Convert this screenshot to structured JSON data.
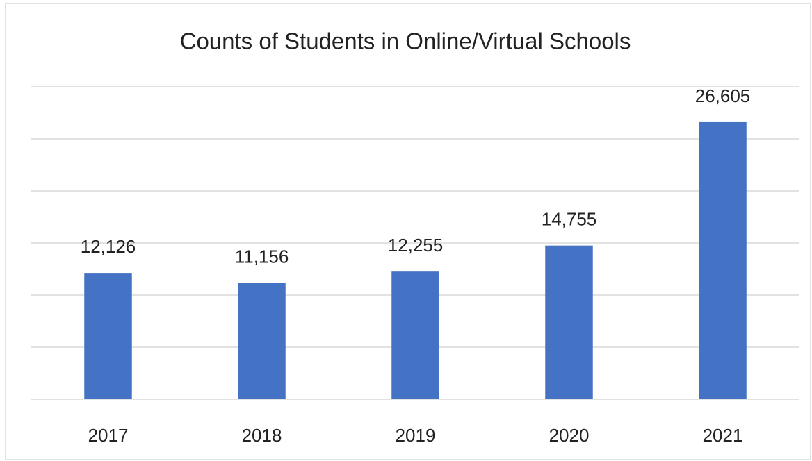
{
  "chart_data": {
    "type": "bar",
    "title": "Counts of Students in Online/Virtual Schools",
    "categories": [
      "2017",
      "2018",
      "2019",
      "2020",
      "2021"
    ],
    "values": [
      12126,
      11156,
      12255,
      14755,
      26605
    ],
    "value_labels": [
      "12,126",
      "11,156",
      "12,255",
      "14,755",
      "26,605"
    ],
    "color": "#4472c4",
    "ylim": [
      0,
      30000
    ],
    "yticks": [
      0,
      5000,
      10000,
      15000,
      20000,
      25000,
      30000
    ],
    "grid": true
  }
}
